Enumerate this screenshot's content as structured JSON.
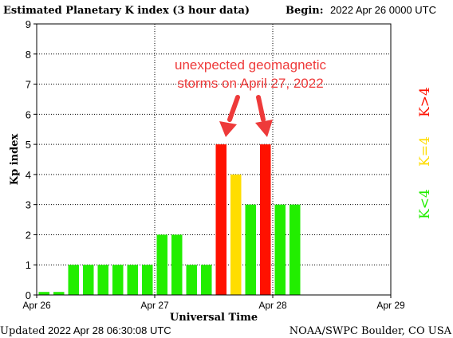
{
  "header": {
    "title": "Estimated Planetary K index (3 hour data)",
    "begin_label": "Begin:",
    "begin_value": "2022 Apr 26 0000 UTC"
  },
  "footer": {
    "updated_label": "Updated",
    "updated_value": "2022 Apr 28 06:30:08 UTC",
    "credit": "NOAA/SWPC Boulder, CO USA"
  },
  "annotation": {
    "line1": "unexpected geomagnetic",
    "line2": "storms on April 27, 2022",
    "color": "#ee3a3a"
  },
  "legend": {
    "k_gt_4": "K>4",
    "k_eq_4": "K=4",
    "k_lt_4": "K<4"
  },
  "colors": {
    "k_lt_4": "#22ee00",
    "k_eq_4": "#ffdd00",
    "k_gt_4": "#ff1100"
  },
  "chart_data": {
    "type": "bar",
    "title": "Estimated Planetary K index (3 hour data)",
    "xlabel": "Universal Time",
    "ylabel": "Kp index",
    "ylim": [
      0,
      9
    ],
    "yticks": [
      0,
      1,
      2,
      3,
      4,
      5,
      6,
      7,
      8,
      9
    ],
    "grid": true,
    "x_range_days": [
      "Apr 26",
      "Apr 29"
    ],
    "xtick_labels": [
      "Apr 26",
      "Apr 27",
      "Apr 28",
      "Apr 29"
    ],
    "intervals_per_day": 8,
    "values": [
      0.1,
      0.1,
      1,
      1,
      1,
      1,
      1,
      1,
      2,
      2,
      1,
      1,
      5,
      4,
      3,
      5,
      3,
      3
    ]
  }
}
